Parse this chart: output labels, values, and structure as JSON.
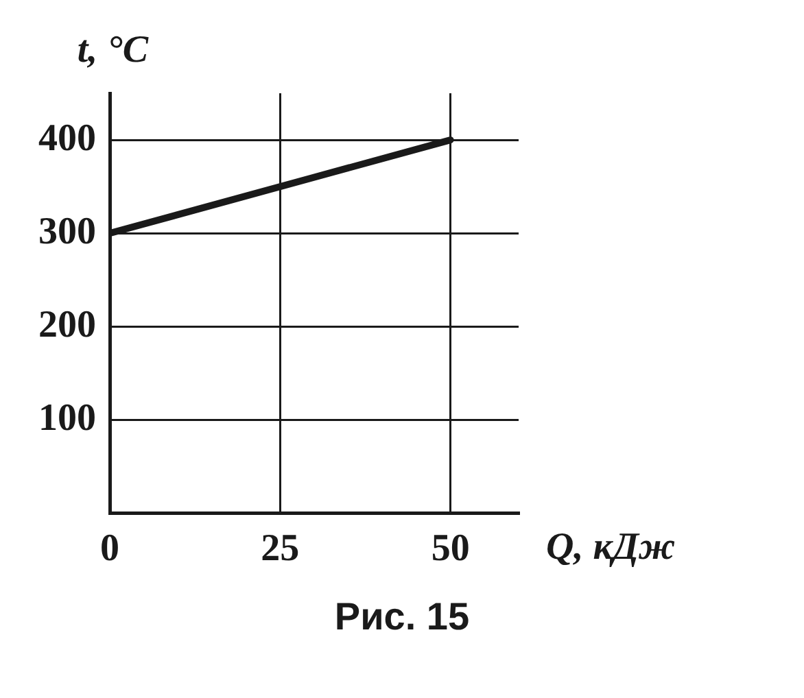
{
  "chart_data": {
    "type": "line",
    "xlabel": "Q, кДж",
    "ylabel": "t, °C",
    "annotations": [
      "Рис. 15"
    ],
    "series": [
      {
        "color": "#1a1a1a",
        "x": [
          0,
          50
        ],
        "values": [
          300,
          400
        ]
      }
    ],
    "xlim": [
      0,
      60
    ],
    "xticks": [
      0,
      25,
      50
    ],
    "ylim": [
      0,
      450
    ],
    "yticks": [
      100,
      200,
      300,
      400
    ],
    "grid": true,
    "legend": false,
    "marker": "none",
    "line_style": "solid"
  }
}
